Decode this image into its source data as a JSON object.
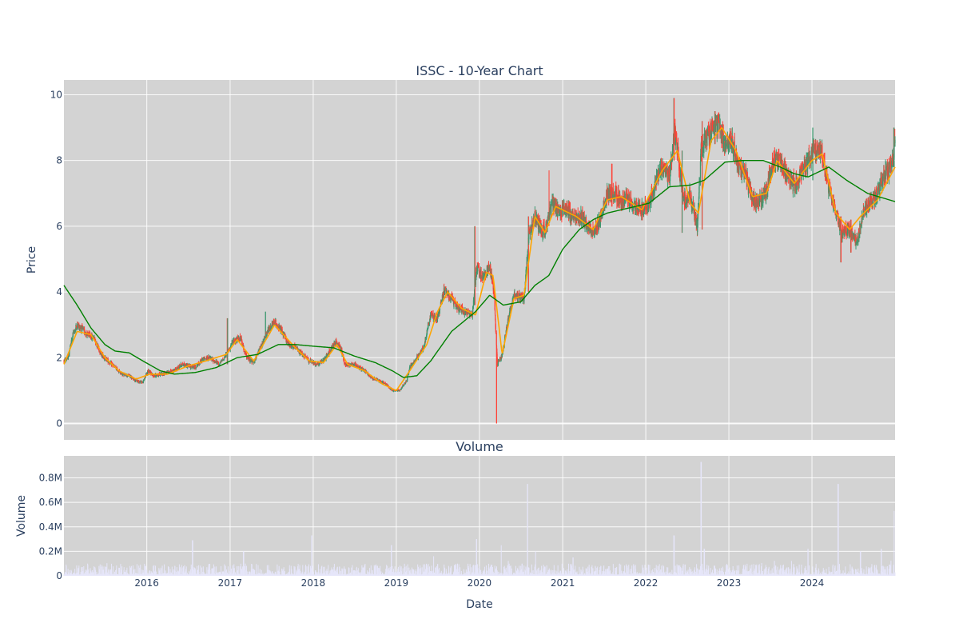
{
  "chart_data": [
    {
      "type": "candlestick",
      "title": "ISSC - 10-Year Chart",
      "ylabel": "Price",
      "ylim": [
        -0.5,
        10.45
      ],
      "yticks": [
        0,
        2,
        4,
        6,
        8,
        10
      ],
      "xlim": [
        "2015-01-02",
        "2024-12-31"
      ],
      "increasing_color": "#3d9970",
      "decreasing_color": "#ff4136",
      "background": "#d3d3d3",
      "price_anchors": [
        [
          "2015-01-02",
          1.9
        ],
        [
          "2015-01-20",
          2.0
        ],
        [
          "2015-02-10",
          2.7
        ],
        [
          "2015-03-01",
          3.0
        ],
        [
          "2015-03-20",
          2.9
        ],
        [
          "2015-04-15",
          2.7
        ],
        [
          "2015-05-15",
          2.6
        ],
        [
          "2015-06-15",
          2.1
        ],
        [
          "2015-07-15",
          1.9
        ],
        [
          "2015-08-15",
          1.7
        ],
        [
          "2015-09-15",
          1.5
        ],
        [
          "2015-10-15",
          1.45
        ],
        [
          "2015-11-15",
          1.3
        ],
        [
          "2015-12-15",
          1.25
        ],
        [
          "2016-01-05",
          1.6
        ],
        [
          "2016-02-01",
          1.45
        ],
        [
          "2016-03-01",
          1.5
        ],
        [
          "2016-04-01",
          1.55
        ],
        [
          "2016-05-01",
          1.6
        ],
        [
          "2016-06-01",
          1.8
        ],
        [
          "2016-07-01",
          1.75
        ],
        [
          "2016-08-01",
          1.7
        ],
        [
          "2016-09-01",
          1.95
        ],
        [
          "2016-10-01",
          2.0
        ],
        [
          "2016-11-15",
          1.8
        ],
        [
          "2016-12-15",
          2.1
        ],
        [
          "2017-01-15",
          2.5
        ],
        [
          "2017-02-15",
          2.6
        ],
        [
          "2017-03-15",
          2.0
        ],
        [
          "2017-04-15",
          1.85
        ],
        [
          "2017-05-15",
          2.3
        ],
        [
          "2017-06-15",
          2.8
        ],
        [
          "2017-07-15",
          3.1
        ],
        [
          "2017-08-15",
          2.8
        ],
        [
          "2017-09-15",
          2.4
        ],
        [
          "2017-10-15",
          2.3
        ],
        [
          "2017-11-15",
          2.1
        ],
        [
          "2017-12-15",
          1.9
        ],
        [
          "2018-01-15",
          1.8
        ],
        [
          "2018-02-15",
          1.9
        ],
        [
          "2018-03-15",
          2.2
        ],
        [
          "2018-04-10",
          2.5
        ],
        [
          "2018-05-01",
          2.3
        ],
        [
          "2018-05-20",
          1.8
        ],
        [
          "2018-07-01",
          1.8
        ],
        [
          "2018-08-15",
          1.6
        ],
        [
          "2018-09-15",
          1.4
        ],
        [
          "2018-10-15",
          1.3
        ],
        [
          "2018-11-15",
          1.2
        ],
        [
          "2018-12-15",
          1.0
        ],
        [
          "2019-01-15",
          1.0
        ],
        [
          "2019-02-15",
          1.3
        ],
        [
          "2019-03-01",
          1.7
        ],
        [
          "2019-04-01",
          2.0
        ],
        [
          "2019-05-01",
          2.3
        ],
        [
          "2019-06-01",
          3.3
        ],
        [
          "2019-07-01",
          3.2
        ],
        [
          "2019-08-01",
          4.1
        ],
        [
          "2019-09-01",
          3.8
        ],
        [
          "2019-10-01",
          3.5
        ],
        [
          "2019-11-01",
          3.4
        ],
        [
          "2019-12-01",
          3.3
        ],
        [
          "2019-12-20",
          4.8
        ],
        [
          "2020-01-15",
          4.4
        ],
        [
          "2020-02-15",
          4.8
        ],
        [
          "2020-03-05",
          4.0
        ],
        [
          "2020-03-20",
          1.8
        ],
        [
          "2020-04-10",
          2.1
        ],
        [
          "2020-05-01",
          3.0
        ],
        [
          "2020-06-01",
          3.9
        ],
        [
          "2020-07-15",
          3.8
        ],
        [
          "2020-08-05",
          5.7
        ],
        [
          "2020-09-01",
          6.3
        ],
        [
          "2020-09-20",
          6.0
        ],
        [
          "2020-10-15",
          5.8
        ],
        [
          "2020-11-15",
          6.7
        ],
        [
          "2020-12-15",
          6.4
        ],
        [
          "2021-01-15",
          6.6
        ],
        [
          "2021-02-15",
          6.2
        ],
        [
          "2021-03-15",
          6.3
        ],
        [
          "2021-04-15",
          6.1
        ],
        [
          "2021-05-15",
          5.8
        ],
        [
          "2021-06-15",
          6.2
        ],
        [
          "2021-07-15",
          7.0
        ],
        [
          "2021-08-15",
          7.0
        ],
        [
          "2021-09-15",
          6.8
        ],
        [
          "2021-10-15",
          6.8
        ],
        [
          "2021-11-15",
          6.6
        ],
        [
          "2021-12-15",
          6.5
        ],
        [
          "2022-01-15",
          6.7
        ],
        [
          "2022-02-15",
          7.3
        ],
        [
          "2022-03-15",
          7.8
        ],
        [
          "2022-04-15",
          7.5
        ],
        [
          "2022-05-10",
          8.9
        ],
        [
          "2022-06-01",
          7.5
        ],
        [
          "2022-06-20",
          6.8
        ],
        [
          "2022-07-15",
          7.0
        ],
        [
          "2022-08-15",
          6.0
        ],
        [
          "2022-09-01",
          8.3
        ],
        [
          "2022-10-01",
          8.8
        ],
        [
          "2022-11-15",
          9.1
        ],
        [
          "2022-12-15",
          8.4
        ],
        [
          "2023-01-15",
          8.6
        ],
        [
          "2023-02-15",
          7.8
        ],
        [
          "2023-03-15",
          7.6
        ],
        [
          "2023-04-15",
          6.8
        ],
        [
          "2023-05-15",
          6.8
        ],
        [
          "2023-06-15",
          7.1
        ],
        [
          "2023-07-15",
          8.0
        ],
        [
          "2023-08-15",
          8.0
        ],
        [
          "2023-09-15",
          7.5
        ],
        [
          "2023-10-15",
          7.3
        ],
        [
          "2023-11-15",
          7.6
        ],
        [
          "2023-12-15",
          8.0
        ],
        [
          "2024-01-15",
          8.3
        ],
        [
          "2024-02-15",
          8.2
        ],
        [
          "2024-03-15",
          7.2
        ],
        [
          "2024-04-15",
          6.4
        ],
        [
          "2024-05-10",
          5.8
        ],
        [
          "2024-06-15",
          5.9
        ],
        [
          "2024-07-15",
          5.5
        ],
        [
          "2024-08-15",
          6.5
        ],
        [
          "2024-09-15",
          6.7
        ],
        [
          "2024-10-15",
          7.0
        ],
        [
          "2024-11-15",
          7.6
        ],
        [
          "2024-12-15",
          7.8
        ],
        [
          "2024-12-31",
          8.6
        ]
      ],
      "price_spikes": [
        [
          "2016-12-20",
          3.2,
          1.8
        ],
        [
          "2017-06-05",
          3.4,
          2.7
        ],
        [
          "2019-12-12",
          6.0,
          3.6
        ],
        [
          "2020-03-16",
          2.3,
          0.0
        ],
        [
          "2020-08-03",
          6.3,
          4.0
        ],
        [
          "2020-11-01",
          7.7,
          6.0
        ],
        [
          "2021-08-05",
          7.9,
          6.6
        ],
        [
          "2022-05-05",
          9.9,
          8.0
        ],
        [
          "2022-06-10",
          8.3,
          5.8
        ],
        [
          "2022-09-05",
          9.2,
          5.9
        ],
        [
          "2022-11-01",
          9.5,
          8.5
        ],
        [
          "2024-01-05",
          9.0,
          7.4
        ],
        [
          "2024-05-07",
          6.3,
          4.9
        ],
        [
          "2024-06-20",
          6.2,
          5.2
        ],
        [
          "2024-12-26",
          9.0,
          7.8
        ]
      ],
      "ma_short": {
        "color": "#ffa500",
        "anchors": [
          [
            "2015-01-02",
            1.8
          ],
          [
            "2015-03-01",
            2.8
          ],
          [
            "2015-05-01",
            2.7
          ],
          [
            "2015-07-01",
            2.0
          ],
          [
            "2015-09-01",
            1.6
          ],
          [
            "2015-11-15",
            1.35
          ],
          [
            "2016-01-15",
            1.5
          ],
          [
            "2016-04-01",
            1.5
          ],
          [
            "2016-07-01",
            1.75
          ],
          [
            "2016-09-15",
            1.9
          ],
          [
            "2016-12-15",
            2.1
          ],
          [
            "2017-02-01",
            2.55
          ],
          [
            "2017-04-15",
            1.9
          ],
          [
            "2017-07-15",
            3.0
          ],
          [
            "2017-10-15",
            2.3
          ],
          [
            "2017-12-15",
            1.9
          ],
          [
            "2018-02-15",
            1.85
          ],
          [
            "2018-04-15",
            2.4
          ],
          [
            "2018-06-01",
            1.8
          ],
          [
            "2018-08-15",
            1.6
          ],
          [
            "2018-11-01",
            1.2
          ],
          [
            "2019-01-01",
            1.0
          ],
          [
            "2019-03-01",
            1.6
          ],
          [
            "2019-05-15",
            2.4
          ],
          [
            "2019-07-01",
            3.4
          ],
          [
            "2019-08-15",
            4.0
          ],
          [
            "2019-10-15",
            3.5
          ],
          [
            "2019-12-15",
            3.3
          ],
          [
            "2020-02-01",
            4.6
          ],
          [
            "2020-03-01",
            4.5
          ],
          [
            "2020-04-10",
            2.1
          ],
          [
            "2020-06-01",
            3.8
          ],
          [
            "2020-07-15",
            3.9
          ],
          [
            "2020-09-01",
            6.3
          ],
          [
            "2020-10-15",
            5.8
          ],
          [
            "2020-12-01",
            6.6
          ],
          [
            "2021-03-01",
            6.3
          ],
          [
            "2021-05-15",
            5.9
          ],
          [
            "2021-07-15",
            6.8
          ],
          [
            "2021-09-15",
            6.9
          ],
          [
            "2021-12-15",
            6.5
          ],
          [
            "2022-03-15",
            7.7
          ],
          [
            "2022-05-20",
            8.3
          ],
          [
            "2022-07-15",
            6.7
          ],
          [
            "2022-08-20",
            6.4
          ],
          [
            "2022-10-15",
            8.6
          ],
          [
            "2022-12-01",
            9.0
          ],
          [
            "2023-02-01",
            8.3
          ],
          [
            "2023-04-15",
            6.9
          ],
          [
            "2023-06-15",
            7.0
          ],
          [
            "2023-08-01",
            8.0
          ],
          [
            "2023-10-15",
            7.3
          ],
          [
            "2024-01-01",
            8.0
          ],
          [
            "2024-02-15",
            8.2
          ],
          [
            "2024-04-15",
            6.4
          ],
          [
            "2024-06-15",
            5.9
          ],
          [
            "2024-08-01",
            6.3
          ],
          [
            "2024-10-15",
            6.8
          ],
          [
            "2024-12-31",
            7.8
          ]
        ]
      },
      "ma_long": {
        "color": "#008000",
        "anchors": [
          [
            "2015-01-02",
            4.2
          ],
          [
            "2015-03-01",
            3.6
          ],
          [
            "2015-05-01",
            2.9
          ],
          [
            "2015-07-01",
            2.4
          ],
          [
            "2015-08-15",
            2.2
          ],
          [
            "2015-10-15",
            2.15
          ],
          [
            "2015-12-15",
            1.9
          ],
          [
            "2016-03-01",
            1.6
          ],
          [
            "2016-05-01",
            1.5
          ],
          [
            "2016-08-01",
            1.55
          ],
          [
            "2016-11-01",
            1.7
          ],
          [
            "2017-02-01",
            2.0
          ],
          [
            "2017-05-01",
            2.1
          ],
          [
            "2017-08-01",
            2.4
          ],
          [
            "2017-10-15",
            2.4
          ],
          [
            "2018-01-01",
            2.35
          ],
          [
            "2018-04-01",
            2.3
          ],
          [
            "2018-07-01",
            2.05
          ],
          [
            "2018-10-01",
            1.85
          ],
          [
            "2018-12-15",
            1.6
          ],
          [
            "2019-02-01",
            1.4
          ],
          [
            "2019-04-01",
            1.45
          ],
          [
            "2019-06-01",
            1.9
          ],
          [
            "2019-09-01",
            2.8
          ],
          [
            "2019-12-15",
            3.4
          ],
          [
            "2020-02-15",
            3.9
          ],
          [
            "2020-04-15",
            3.6
          ],
          [
            "2020-07-01",
            3.7
          ],
          [
            "2020-09-01",
            4.2
          ],
          [
            "2020-11-01",
            4.5
          ],
          [
            "2021-01-01",
            5.3
          ],
          [
            "2021-03-15",
            5.9
          ],
          [
            "2021-05-15",
            6.2
          ],
          [
            "2021-07-15",
            6.4
          ],
          [
            "2021-10-15",
            6.55
          ],
          [
            "2022-01-15",
            6.7
          ],
          [
            "2022-04-15",
            7.2
          ],
          [
            "2022-07-15",
            7.25
          ],
          [
            "2022-09-15",
            7.4
          ],
          [
            "2022-12-15",
            7.95
          ],
          [
            "2023-03-01",
            8.0
          ],
          [
            "2023-06-01",
            8.0
          ],
          [
            "2023-08-15",
            7.8
          ],
          [
            "2023-10-15",
            7.6
          ],
          [
            "2023-12-15",
            7.5
          ],
          [
            "2024-03-15",
            7.8
          ],
          [
            "2024-06-01",
            7.4
          ],
          [
            "2024-09-01",
            7.0
          ],
          [
            "2024-12-31",
            6.75
          ]
        ]
      }
    },
    {
      "type": "bar",
      "title": "Volume",
      "xlabel": "Date",
      "ylabel": "Volume",
      "ylim": [
        0,
        0.98
      ],
      "yticks": [
        0,
        0.2,
        0.4,
        0.6,
        0.8
      ],
      "ytick_labels": [
        "0",
        "0.2M",
        "0.4M",
        "0.6M",
        "0.8M"
      ],
      "x_tick_labels": [
        "2016",
        "2017",
        "2018",
        "2019",
        "2020",
        "2021",
        "2022",
        "2023",
        "2024"
      ],
      "bar_color": "#e6e6fa",
      "background": "#d3d3d3",
      "volume_spikes_millions": [
        [
          "2016-07-20",
          0.29
        ],
        [
          "2017-03-01",
          0.2
        ],
        [
          "2017-12-25",
          0.33
        ],
        [
          "2018-12-10",
          0.25
        ],
        [
          "2019-06-15",
          0.16
        ],
        [
          "2019-12-20",
          0.3
        ],
        [
          "2020-04-05",
          0.25
        ],
        [
          "2020-07-31",
          0.75
        ],
        [
          "2020-09-05",
          0.2
        ],
        [
          "2021-02-15",
          0.15
        ],
        [
          "2022-05-05",
          0.33
        ],
        [
          "2022-09-01",
          0.93
        ],
        [
          "2022-09-15",
          0.22
        ],
        [
          "2023-12-15",
          0.22
        ],
        [
          "2024-04-25",
          0.75
        ],
        [
          "2024-08-01",
          0.2
        ],
        [
          "2024-11-01",
          0.22
        ],
        [
          "2024-12-28",
          0.53
        ]
      ]
    }
  ]
}
